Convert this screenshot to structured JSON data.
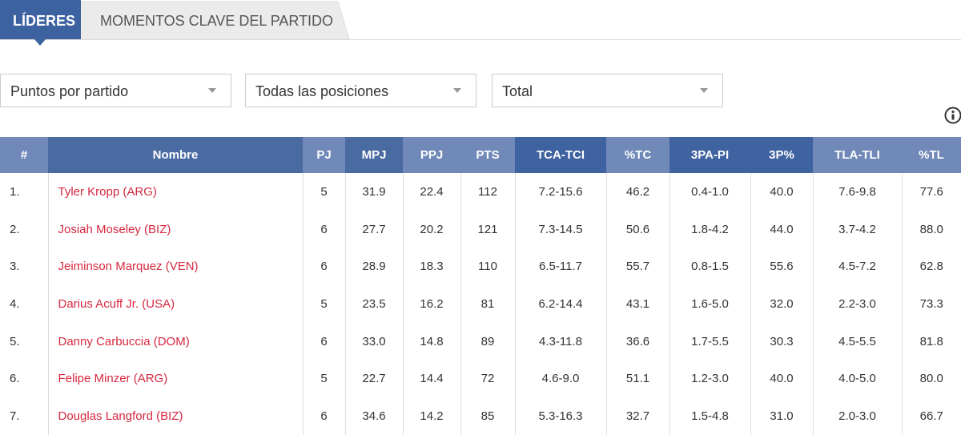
{
  "tabs": [
    "LÍDERES",
    "MOMENTOS CLAVE DEL PARTIDO"
  ],
  "filters": [
    "Puntos por partido",
    "Todas las posiciones",
    "Total"
  ],
  "table": {
    "columns": [
      "#",
      "Nombre",
      "PJ",
      "MPJ",
      "PPJ",
      "PTS",
      "TCA-TCI",
      "%TC",
      "3PA-PI",
      "3P%",
      "TLA-TLI",
      "%TL"
    ],
    "rows": [
      [
        "1.",
        "Tyler Kropp (ARG)",
        "5",
        "31.9",
        "22.4",
        "112",
        "7.2-15.6",
        "46.2",
        "0.4-1.0",
        "40.0",
        "7.6-9.8",
        "77.6"
      ],
      [
        "2.",
        "Josiah Moseley (BIZ)",
        "6",
        "27.7",
        "20.2",
        "121",
        "7.3-14.5",
        "50.6",
        "1.8-4.2",
        "44.0",
        "3.7-4.2",
        "88.0"
      ],
      [
        "3.",
        "Jeiminson Marquez (VEN)",
        "6",
        "28.9",
        "18.3",
        "110",
        "6.5-11.7",
        "55.7",
        "0.8-1.5",
        "55.6",
        "4.5-7.2",
        "62.8"
      ],
      [
        "4.",
        "Darius Acuff Jr. (USA)",
        "5",
        "23.5",
        "16.2",
        "81",
        "6.2-14.4",
        "43.1",
        "1.6-5.0",
        "32.0",
        "2.2-3.0",
        "73.3"
      ],
      [
        "5.",
        "Danny Carbuccia (DOM)",
        "6",
        "33.0",
        "14.8",
        "89",
        "4.3-11.8",
        "36.6",
        "1.7-5.5",
        "30.3",
        "4.5-5.5",
        "81.8"
      ],
      [
        "6.",
        "Felipe Minzer (ARG)",
        "5",
        "22.7",
        "14.4",
        "72",
        "4.6-9.0",
        "51.1",
        "1.2-3.0",
        "40.0",
        "4.0-5.0",
        "80.0"
      ],
      [
        "7.",
        "Douglas Langford (BIZ)",
        "6",
        "34.6",
        "14.2",
        "85",
        "5.3-16.3",
        "32.7",
        "1.5-4.8",
        "31.0",
        "2.0-3.0",
        "66.7"
      ]
    ]
  }
}
